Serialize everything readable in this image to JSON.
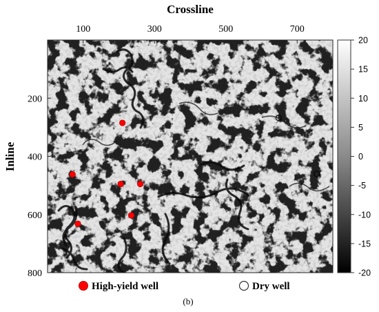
{
  "caption": "(b)",
  "chart_data": {
    "type": "heatmap",
    "title": "",
    "xlabel": "Crossline",
    "ylabel": "Inline",
    "x_ticks": [
      100,
      300,
      500,
      700
    ],
    "y_ticks": [
      200,
      400,
      600,
      800
    ],
    "xlim": [
      0,
      800
    ],
    "ylim": [
      0,
      800
    ],
    "y_inverted": true,
    "x_axis_position": "top",
    "colorbar": {
      "range": [
        -20,
        20
      ],
      "ticks": [
        20,
        15,
        10,
        5,
        0,
        -5,
        -10,
        -15,
        -20
      ],
      "colormap": "gray",
      "low_color": "#000000",
      "high_color": "#ffffff"
    },
    "series": [
      {
        "name": "High-yield well",
        "marker": "filled-circle",
        "color": "#ff0000",
        "points": [
          {
            "crossline": 210,
            "inline": 285
          },
          {
            "crossline": 70,
            "inline": 462
          },
          {
            "crossline": 205,
            "inline": 495
          },
          {
            "crossline": 260,
            "inline": 495
          },
          {
            "crossline": 235,
            "inline": 603
          },
          {
            "crossline": 85,
            "inline": 632
          }
        ]
      },
      {
        "name": "Dry well",
        "marker": "open-circle",
        "color": "#000000",
        "points": [
          {
            "crossline": 648,
            "inline": 268
          },
          {
            "crossline": 755,
            "inline": 460
          }
        ]
      }
    ],
    "legend_position": "bottom"
  }
}
